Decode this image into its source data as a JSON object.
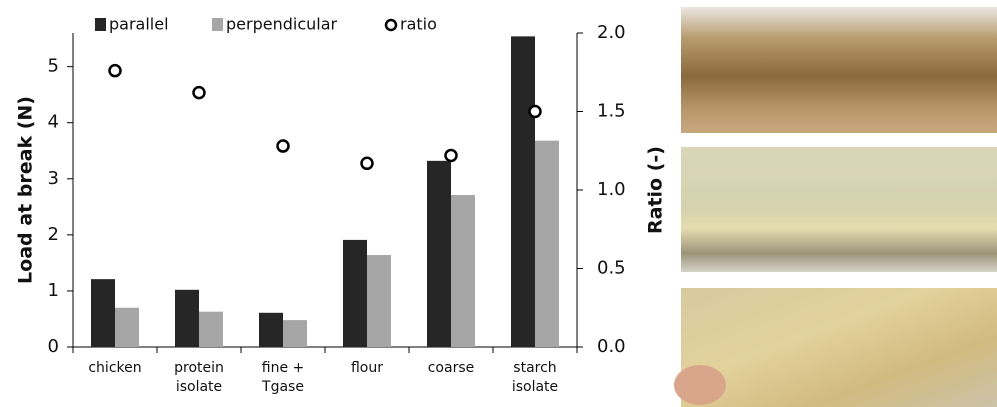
{
  "chart_data": {
    "type": "bar",
    "categories": [
      "chicken",
      "protein\nisolate",
      "fine +\nTgase",
      "flour",
      "coarse",
      "starch\nisolate"
    ],
    "ylabel": "Load at break (N)",
    "y2label": "Ratio (-)",
    "ylim": [
      0,
      5.6
    ],
    "yticks": [
      0,
      1,
      2,
      3,
      4,
      5
    ],
    "y2lim": [
      0,
      2.0
    ],
    "y2ticks": [
      {
        "value": 0,
        "label": "0.0"
      },
      {
        "value": 0.5,
        "label": "0.5"
      },
      {
        "value": 1,
        "label": "1.0"
      },
      {
        "value": 1.5,
        "label": "1.5"
      },
      {
        "value": 2,
        "label": "2.0"
      }
    ],
    "series": [
      {
        "name": "parallel",
        "type": "bar",
        "color": "#262626",
        "values": [
          1.21,
          1.02,
          0.61,
          1.91,
          3.32,
          5.54
        ]
      },
      {
        "name": "perpendicular",
        "type": "bar",
        "color": "#a6a6a6",
        "values": [
          0.7,
          0.63,
          0.48,
          1.64,
          2.71,
          3.68
        ]
      },
      {
        "name": "ratio",
        "type": "scatter",
        "axis": "y2",
        "color": "#000000",
        "values": [
          1.76,
          1.62,
          1.28,
          1.17,
          1.22,
          1.5
        ]
      }
    ]
  }
}
